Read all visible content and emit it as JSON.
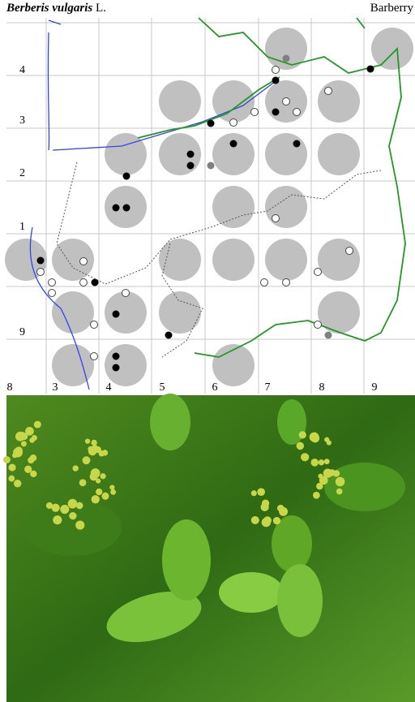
{
  "header": {
    "species": "Berberis vulgaris",
    "author": "L.",
    "common_name": "Barberry"
  },
  "map": {
    "row_labels": [
      "4",
      "3",
      "2",
      "1",
      "9"
    ],
    "column_labels": [
      "8",
      "3",
      "4",
      "5",
      "6",
      "7",
      "8",
      "9"
    ]
  }
}
